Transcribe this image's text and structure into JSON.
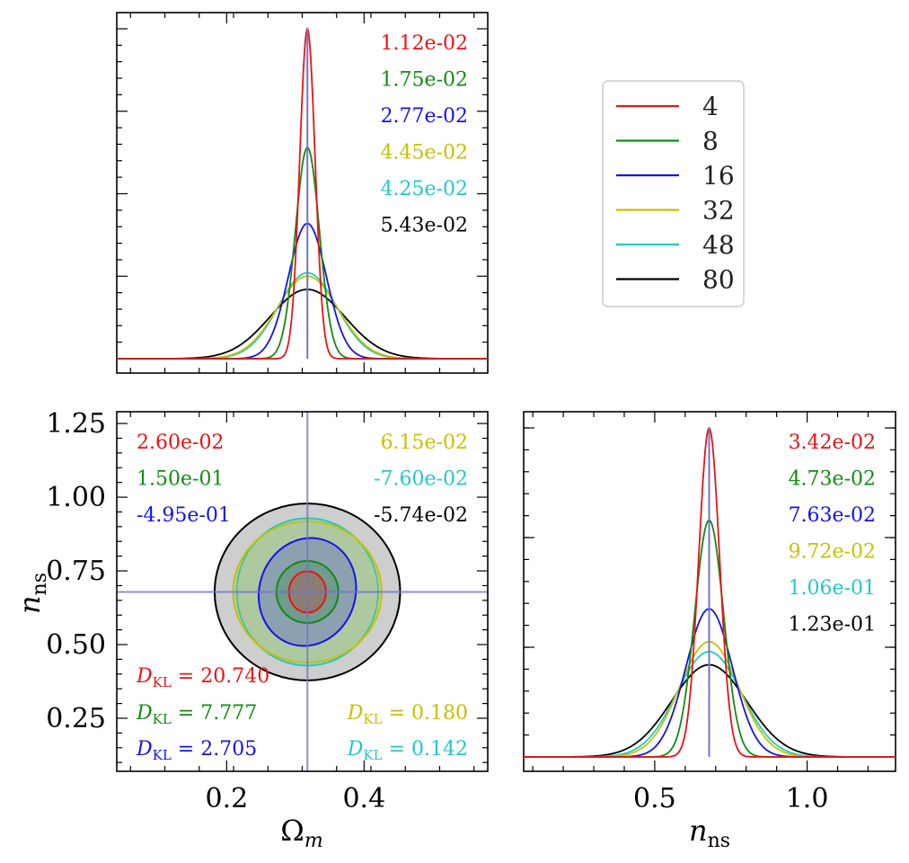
{
  "colors": {
    "4": "#ee1111",
    "8": "#138a13",
    "16": "#1313ee",
    "32": "#c8c000",
    "48": "#22c8c8",
    "80": "#000000",
    "truth": "#7373c8",
    "contour_fill": "#bdbdbd"
  },
  "legend": {
    "entries": [
      {
        "label": "4",
        "color_key": "4"
      },
      {
        "label": "8",
        "color_key": "8"
      },
      {
        "label": "16",
        "color_key": "16"
      },
      {
        "label": "32",
        "color_key": "32"
      },
      {
        "label": "48",
        "color_key": "48"
      },
      {
        "label": "80",
        "color_key": "80"
      }
    ],
    "placement": "upper-right (empty panel of corner plot)"
  },
  "axes": {
    "omega_m_label": "Ω",
    "omega_m_sub": "m",
    "n_ns_label": "n",
    "n_ns_sub": "ns"
  },
  "chart_data": [
    {
      "type": "line",
      "panel": "top-left marginal of Omega_m",
      "xlim": [
        0.04,
        0.58
      ],
      "truth": 0.3175,
      "series": [
        {
          "name": "4",
          "mean": 0.3175,
          "sigma": 0.0112,
          "peak": 1.0
        },
        {
          "name": "8",
          "mean": 0.3175,
          "sigma": 0.0175,
          "peak": 0.64
        },
        {
          "name": "16",
          "mean": 0.3175,
          "sigma": 0.0277,
          "peak": 0.41
        },
        {
          "name": "32",
          "mean": 0.3175,
          "sigma": 0.0445,
          "peak": 0.25
        },
        {
          "name": "48",
          "mean": 0.3175,
          "sigma": 0.0425,
          "peak": 0.26
        },
        {
          "name": "80",
          "mean": 0.3175,
          "sigma": 0.0543,
          "peak": 0.21
        }
      ],
      "annotations": [
        {
          "text": "1.12e-02",
          "color_key": "4"
        },
        {
          "text": "1.75e-02",
          "color_key": "8"
        },
        {
          "text": "2.77e-02",
          "color_key": "16"
        },
        {
          "text": "4.45e-02",
          "color_key": "32"
        },
        {
          "text": "4.25e-02",
          "color_key": "48"
        },
        {
          "text": "5.43e-02",
          "color_key": "80"
        }
      ]
    },
    {
      "type": "scatter",
      "panel": "bottom-left joint Omega_m vs n_ns",
      "xlim": [
        0.04,
        0.58
      ],
      "ylim": [
        0.07,
        1.29
      ],
      "xticks": [
        0.2,
        0.4
      ],
      "yticks": [
        0.25,
        0.5,
        0.75,
        1.0,
        1.25
      ],
      "xtick_labels": [
        "0.2",
        "0.4"
      ],
      "ytick_labels": [
        "0.25",
        "0.50",
        "0.75",
        "1.00",
        "1.25"
      ],
      "truth": [
        0.3175,
        0.6785
      ],
      "ellipses": [
        {
          "name": "80",
          "cx": 0.3175,
          "cy": 0.6785,
          "rx": 0.135,
          "ry": 0.3,
          "angle": 0,
          "filled": true
        },
        {
          "name": "48",
          "cx": 0.3175,
          "cy": 0.6785,
          "rx": 0.103,
          "ry": 0.25,
          "angle": 0,
          "filled": true
        },
        {
          "name": "32",
          "cx": 0.3175,
          "cy": 0.6785,
          "rx": 0.108,
          "ry": 0.24,
          "angle": 0,
          "filled": true
        },
        {
          "name": "16",
          "cx": 0.3175,
          "cy": 0.6785,
          "rx": 0.07,
          "ry": 0.185,
          "angle": 18,
          "filled": true
        },
        {
          "name": "8",
          "cx": 0.3175,
          "cy": 0.6785,
          "rx": 0.045,
          "ry": 0.105,
          "angle": 8,
          "filled": true
        },
        {
          "name": "4",
          "cx": 0.3175,
          "cy": 0.6785,
          "rx": 0.027,
          "ry": 0.07,
          "angle": 0,
          "filled": true
        }
      ],
      "corr_annotations": [
        {
          "text": "2.60e-02",
          "color_key": "4"
        },
        {
          "text": "1.50e-01",
          "color_key": "8"
        },
        {
          "text": "-4.95e-01",
          "color_key": "16"
        },
        {
          "text": "6.15e-02",
          "color_key": "32"
        },
        {
          "text": "-7.60e-02",
          "color_key": "48"
        },
        {
          "text": "-5.74e-02",
          "color_key": "80"
        }
      ],
      "dkl": [
        {
          "sym": "D",
          "sub": "KL",
          "value": " = 20.740",
          "color_key": "4"
        },
        {
          "sym": "D",
          "sub": "KL",
          "value": " = 7.777",
          "color_key": "8"
        },
        {
          "sym": "D",
          "sub": "KL",
          "value": " = 2.705",
          "color_key": "16"
        },
        {
          "sym": "D",
          "sub": "KL",
          "value": " = 0.180",
          "color_key": "32"
        },
        {
          "sym": "D",
          "sub": "KL",
          "value": " = 0.142",
          "color_key": "48"
        }
      ]
    },
    {
      "type": "line",
      "panel": "bottom-right marginal of n_ns",
      "xlim": [
        0.07,
        1.29
      ],
      "xticks": [
        0.5,
        1.0
      ],
      "xtick_labels": [
        "0.5",
        "1.0"
      ],
      "truth": 0.6785,
      "series": [
        {
          "name": "4",
          "mean": 0.6785,
          "sigma": 0.0342,
          "peak": 1.0
        },
        {
          "name": "8",
          "mean": 0.6785,
          "sigma": 0.0473,
          "peak": 0.72
        },
        {
          "name": "16",
          "mean": 0.6785,
          "sigma": 0.0763,
          "peak": 0.45
        },
        {
          "name": "32",
          "mean": 0.6785,
          "sigma": 0.0972,
          "peak": 0.35
        },
        {
          "name": "48",
          "mean": 0.6785,
          "sigma": 0.106,
          "peak": 0.32
        },
        {
          "name": "80",
          "mean": 0.6785,
          "sigma": 0.123,
          "peak": 0.28
        }
      ],
      "annotations": [
        {
          "text": "3.42e-02",
          "color_key": "4"
        },
        {
          "text": "4.73e-02",
          "color_key": "8"
        },
        {
          "text": "7.63e-02",
          "color_key": "16"
        },
        {
          "text": "9.72e-02",
          "color_key": "32"
        },
        {
          "text": "1.06e-01",
          "color_key": "48"
        },
        {
          "text": "1.23e-01",
          "color_key": "80"
        }
      ]
    }
  ]
}
